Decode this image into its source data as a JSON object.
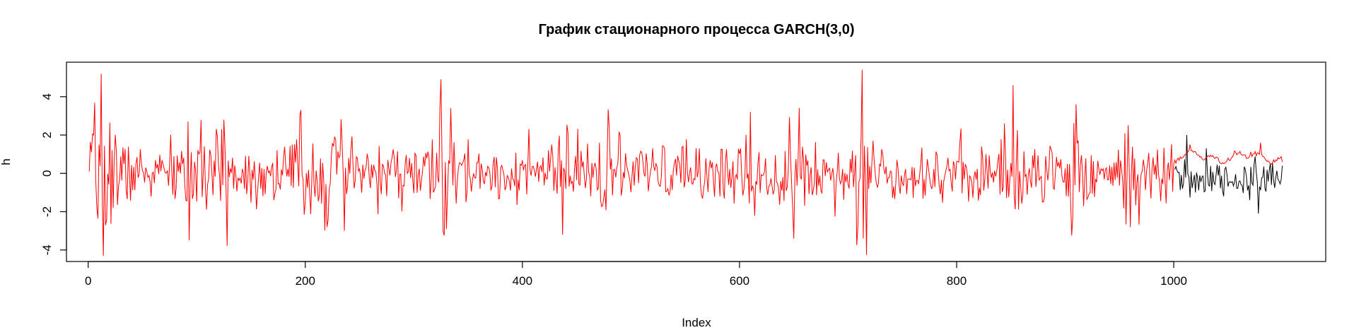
{
  "chart_data": {
    "type": "line",
    "title": "График стационарного процесса GARCH(3,0)",
    "xlabel": "Index",
    "ylabel": "h",
    "xlim": [
      -20,
      1140
    ],
    "ylim": [
      -4.6,
      5.8
    ],
    "x_ticks": [
      0,
      200,
      400,
      600,
      800,
      1000
    ],
    "x_tick_labels": [
      "0",
      "200",
      "400",
      "600",
      "800",
      "1000"
    ],
    "y_ticks": [
      -4,
      -2,
      0,
      2,
      4
    ],
    "y_tick_labels": [
      "-4",
      "-2",
      "0",
      "2",
      "4"
    ],
    "grid": false,
    "legend": "none",
    "series": [
      {
        "color": "#ff0000",
        "x_start": 1,
        "x_end": 1100,
        "n_points": 1100,
        "notable_points": [
          {
            "x": 1,
            "y": 0.1
          },
          {
            "x": 8,
            "y": -1.8
          },
          {
            "x": 10,
            "y": 1.5
          },
          {
            "x": 12,
            "y": 5.2
          },
          {
            "x": 14,
            "y": -4.3
          },
          {
            "x": 16,
            "y": -2.7
          },
          {
            "x": 25,
            "y": 2.0
          },
          {
            "x": 92,
            "y": 2.7
          },
          {
            "x": 93,
            "y": -3.5
          },
          {
            "x": 125,
            "y": 2.8
          },
          {
            "x": 196,
            "y": 3.3
          },
          {
            "x": 220,
            "y": -2.8
          },
          {
            "x": 236,
            "y": -3.0
          },
          {
            "x": 325,
            "y": 4.9
          },
          {
            "x": 330,
            "y": -2.9
          },
          {
            "x": 437,
            "y": -3.2
          },
          {
            "x": 480,
            "y": 2.4
          },
          {
            "x": 610,
            "y": 3.2
          },
          {
            "x": 650,
            "y": -3.4
          },
          {
            "x": 713,
            "y": 5.4
          },
          {
            "x": 714,
            "y": -3.4
          },
          {
            "x": 852,
            "y": 4.6
          },
          {
            "x": 910,
            "y": 3.6
          },
          {
            "x": 960,
            "y": -2.8
          },
          {
            "x": 1000,
            "y": 0.5
          },
          {
            "x": 1015,
            "y": 1.5
          },
          {
            "x": 1050,
            "y": 0.8
          },
          {
            "x": 1080,
            "y": 1.6
          },
          {
            "x": 1100,
            "y": 0.6
          }
        ]
      },
      {
        "color": "#000000",
        "x_start": 1001,
        "x_end": 1100,
        "n_points": 100,
        "notable_points": [
          {
            "x": 1001,
            "y": 0.2
          },
          {
            "x": 1008,
            "y": -0.8
          },
          {
            "x": 1012,
            "y": 2.0
          },
          {
            "x": 1020,
            "y": -1.0
          },
          {
            "x": 1030,
            "y": 1.3
          },
          {
            "x": 1045,
            "y": -0.9
          },
          {
            "x": 1070,
            "y": -1.4
          },
          {
            "x": 1078,
            "y": -2.1
          },
          {
            "x": 1090,
            "y": -0.6
          },
          {
            "x": 1100,
            "y": 0.4
          }
        ]
      }
    ]
  }
}
